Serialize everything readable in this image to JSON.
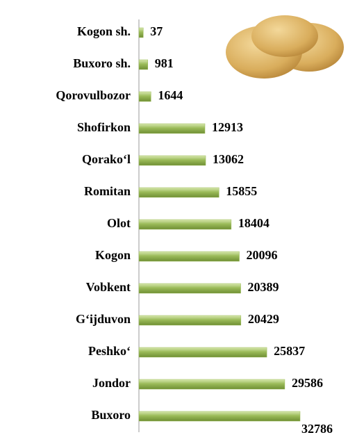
{
  "chart_data": {
    "type": "bar",
    "orientation": "horizontal",
    "categories": [
      "Kogon sh.",
      "Buxoro sh.",
      "Qorovulbozor",
      "Shofirkon",
      "Qorako‘l",
      "Romitan",
      "Olot",
      "Kogon",
      "Vobkent",
      "G‘ijduvon",
      "Peshko‘",
      "Jondor",
      "Buxoro"
    ],
    "values": [
      37,
      981,
      1644,
      12913,
      13062,
      15855,
      18404,
      20096,
      20389,
      20429,
      25837,
      29586,
      32786
    ],
    "color": "#9bbb59"
  }
}
